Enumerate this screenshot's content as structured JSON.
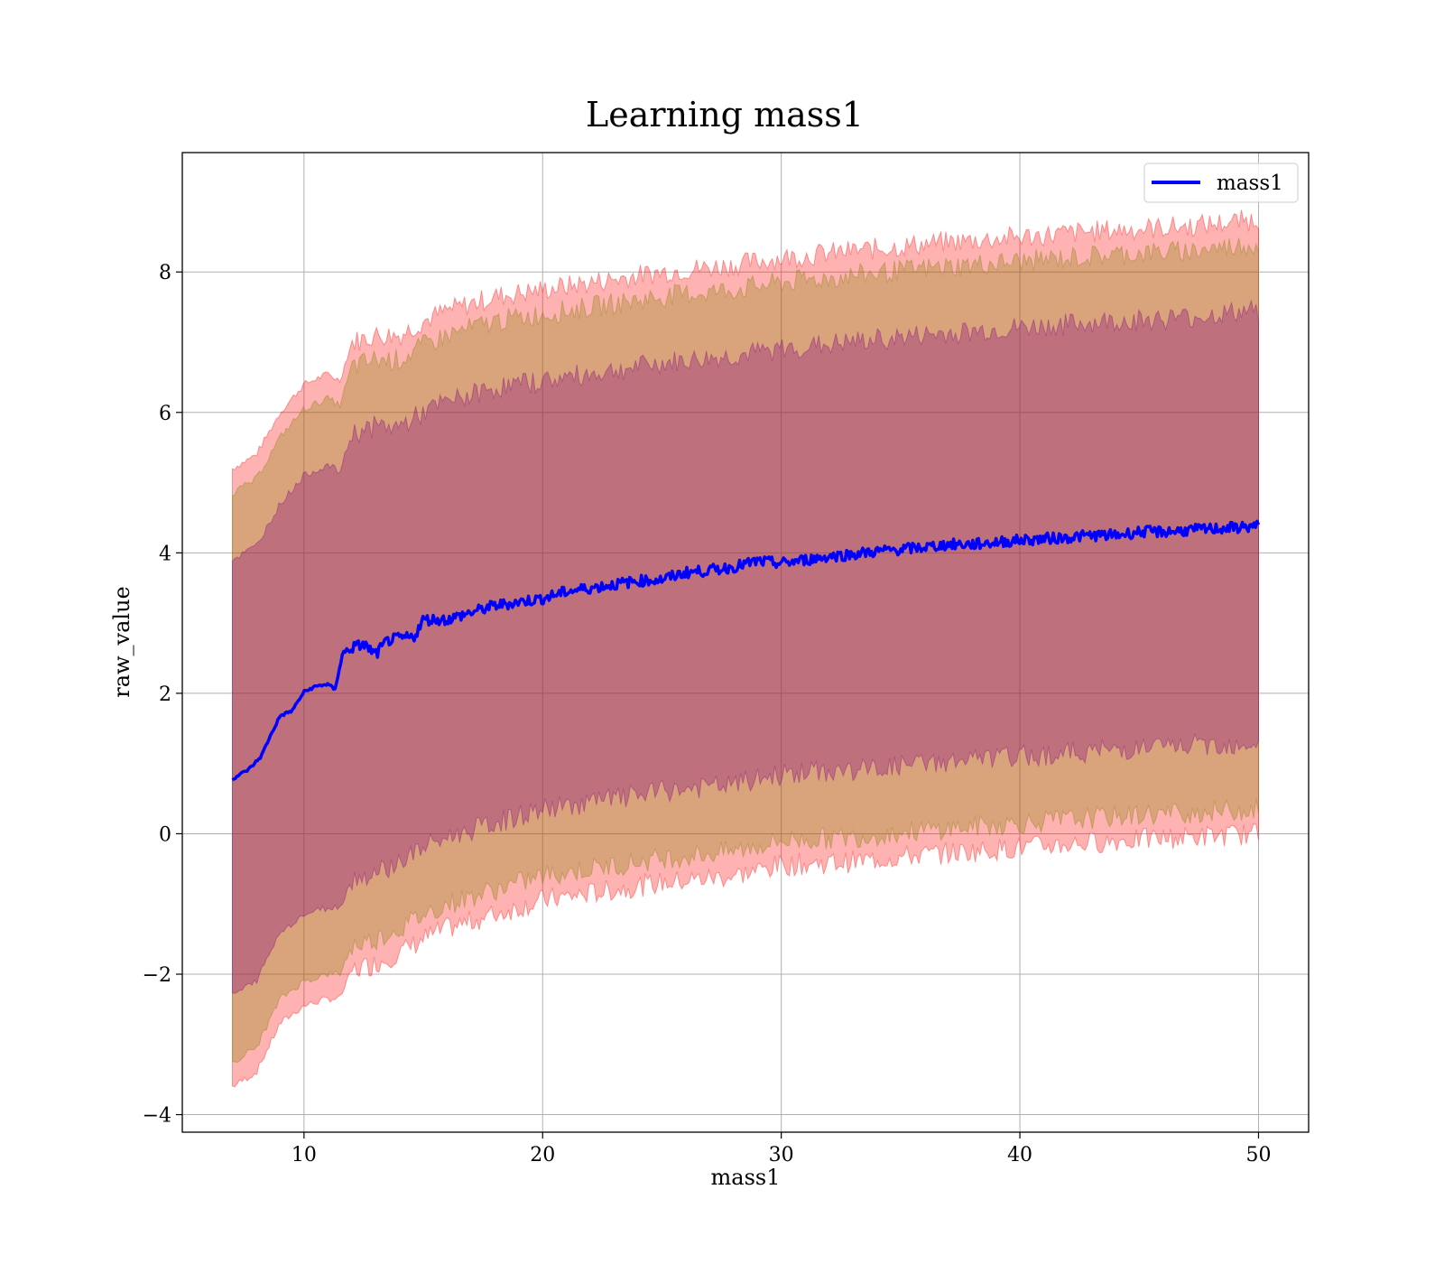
{
  "chart_data": {
    "type": "line",
    "title": "Learning mass1",
    "xlabel": "mass1",
    "ylabel": "raw_value",
    "xlim": [
      4.9,
      52.1
    ],
    "ylim": [
      -4.25,
      9.7
    ],
    "x_ticks": [
      10,
      20,
      30,
      40,
      50
    ],
    "y_ticks": [
      -4,
      -2,
      0,
      2,
      4,
      6,
      8
    ],
    "x_tick_labels": [
      "10",
      "20",
      "30",
      "40",
      "50"
    ],
    "y_tick_labels": [
      "−4",
      "−2",
      "0",
      "2",
      "4",
      "6",
      "8"
    ],
    "grid": true,
    "legend_position": "top-right",
    "series": [
      {
        "name": "mass1",
        "color": "#0000ff",
        "x": [
          7.0,
          7.7,
          8.2,
          8.6,
          9.0,
          9.5,
          10.0,
          10.5,
          11.0,
          11.3,
          11.6,
          12.0,
          12.5,
          13.0,
          13.5,
          14.0,
          14.6,
          15.0,
          16.0,
          17.0,
          18.0,
          19.0,
          20.0,
          21.0,
          22.0,
          23.0,
          24.0,
          25.0,
          26.0,
          27.0,
          28.0,
          29.0,
          30.0,
          31.0,
          32.0,
          33.0,
          34.0,
          35.0,
          36.0,
          37.0,
          38.0,
          39.0,
          40.0,
          41.0,
          42.0,
          43.0,
          44.0,
          45.0,
          46.0,
          47.0,
          48.0,
          49.0,
          50.0
        ],
        "y": [
          0.78,
          0.92,
          1.1,
          1.4,
          1.68,
          1.75,
          2.02,
          2.1,
          2.13,
          2.05,
          2.55,
          2.65,
          2.7,
          2.55,
          2.75,
          2.78,
          2.8,
          3.05,
          3.05,
          3.15,
          3.25,
          3.3,
          3.35,
          3.45,
          3.5,
          3.55,
          3.6,
          3.62,
          3.72,
          3.75,
          3.8,
          3.88,
          3.85,
          3.9,
          3.95,
          3.98,
          4.02,
          4.05,
          4.08,
          4.12,
          4.12,
          4.15,
          4.18,
          4.2,
          4.22,
          4.25,
          4.25,
          4.3,
          4.3,
          4.32,
          4.34,
          4.36,
          4.38
        ]
      }
    ],
    "bands": [
      {
        "color": "#ff0000",
        "opacity": 0.3,
        "x": [
          7.0,
          8.0,
          9.0,
          10.0,
          11.0,
          11.5,
          12.0,
          13.0,
          14.0,
          15.0,
          16.0,
          18.0,
          20.0,
          22.0,
          25.0,
          28.0,
          30.0,
          33.0,
          36.0,
          40.0,
          44.0,
          47.0,
          50.0
        ],
        "upper": [
          5.2,
          5.4,
          6.0,
          6.4,
          6.55,
          6.45,
          7.0,
          7.1,
          7.1,
          7.3,
          7.45,
          7.65,
          7.75,
          7.85,
          8.0,
          8.1,
          8.2,
          8.3,
          8.4,
          8.5,
          8.6,
          8.65,
          8.75
        ],
        "lower": [
          -3.6,
          -3.4,
          -2.7,
          -2.45,
          -2.35,
          -2.35,
          -1.95,
          -1.85,
          -1.7,
          -1.5,
          -1.35,
          -1.15,
          -0.95,
          -0.85,
          -0.7,
          -0.6,
          -0.45,
          -0.4,
          -0.3,
          -0.2,
          -0.1,
          -0.05,
          0.0
        ]
      },
      {
        "color": "#808000",
        "opacity": 0.3,
        "x": [
          7.0,
          8.0,
          9.0,
          10.0,
          11.0,
          11.5,
          12.0,
          13.0,
          14.0,
          15.0,
          16.0,
          18.0,
          20.0,
          22.0,
          25.0,
          28.0,
          30.0,
          33.0,
          36.0,
          40.0,
          44.0,
          47.0,
          50.0
        ],
        "upper": [
          4.85,
          5.05,
          5.65,
          6.05,
          6.2,
          6.1,
          6.65,
          6.75,
          6.75,
          6.95,
          7.1,
          7.3,
          7.4,
          7.5,
          7.65,
          7.75,
          7.85,
          7.95,
          8.05,
          8.15,
          8.25,
          8.3,
          8.4
        ],
        "lower": [
          -3.25,
          -3.05,
          -2.35,
          -2.1,
          -2.0,
          -2.0,
          -1.6,
          -1.5,
          -1.35,
          -1.15,
          -1.0,
          -0.8,
          -0.6,
          -0.5,
          -0.35,
          -0.25,
          -0.1,
          -0.05,
          0.05,
          0.15,
          0.25,
          0.3,
          0.35
        ]
      },
      {
        "color": "#800080",
        "opacity": 0.3,
        "x": [
          7.0,
          8.0,
          9.0,
          10.0,
          11.0,
          11.5,
          12.0,
          13.0,
          14.0,
          15.0,
          16.0,
          18.0,
          20.0,
          22.0,
          25.0,
          28.0,
          30.0,
          33.0,
          36.0,
          40.0,
          44.0,
          47.0,
          50.0
        ],
        "upper": [
          3.9,
          4.1,
          4.7,
          5.1,
          5.25,
          5.15,
          5.7,
          5.8,
          5.8,
          6.0,
          6.15,
          6.35,
          6.45,
          6.55,
          6.7,
          6.8,
          6.9,
          7.0,
          7.1,
          7.2,
          7.3,
          7.35,
          7.45
        ],
        "lower": [
          -2.3,
          -2.1,
          -1.4,
          -1.15,
          -1.05,
          -1.05,
          -0.65,
          -0.55,
          -0.4,
          -0.2,
          -0.05,
          0.15,
          0.35,
          0.45,
          0.6,
          0.7,
          0.85,
          0.9,
          1.0,
          1.1,
          1.2,
          1.25,
          1.3
        ]
      }
    ]
  }
}
